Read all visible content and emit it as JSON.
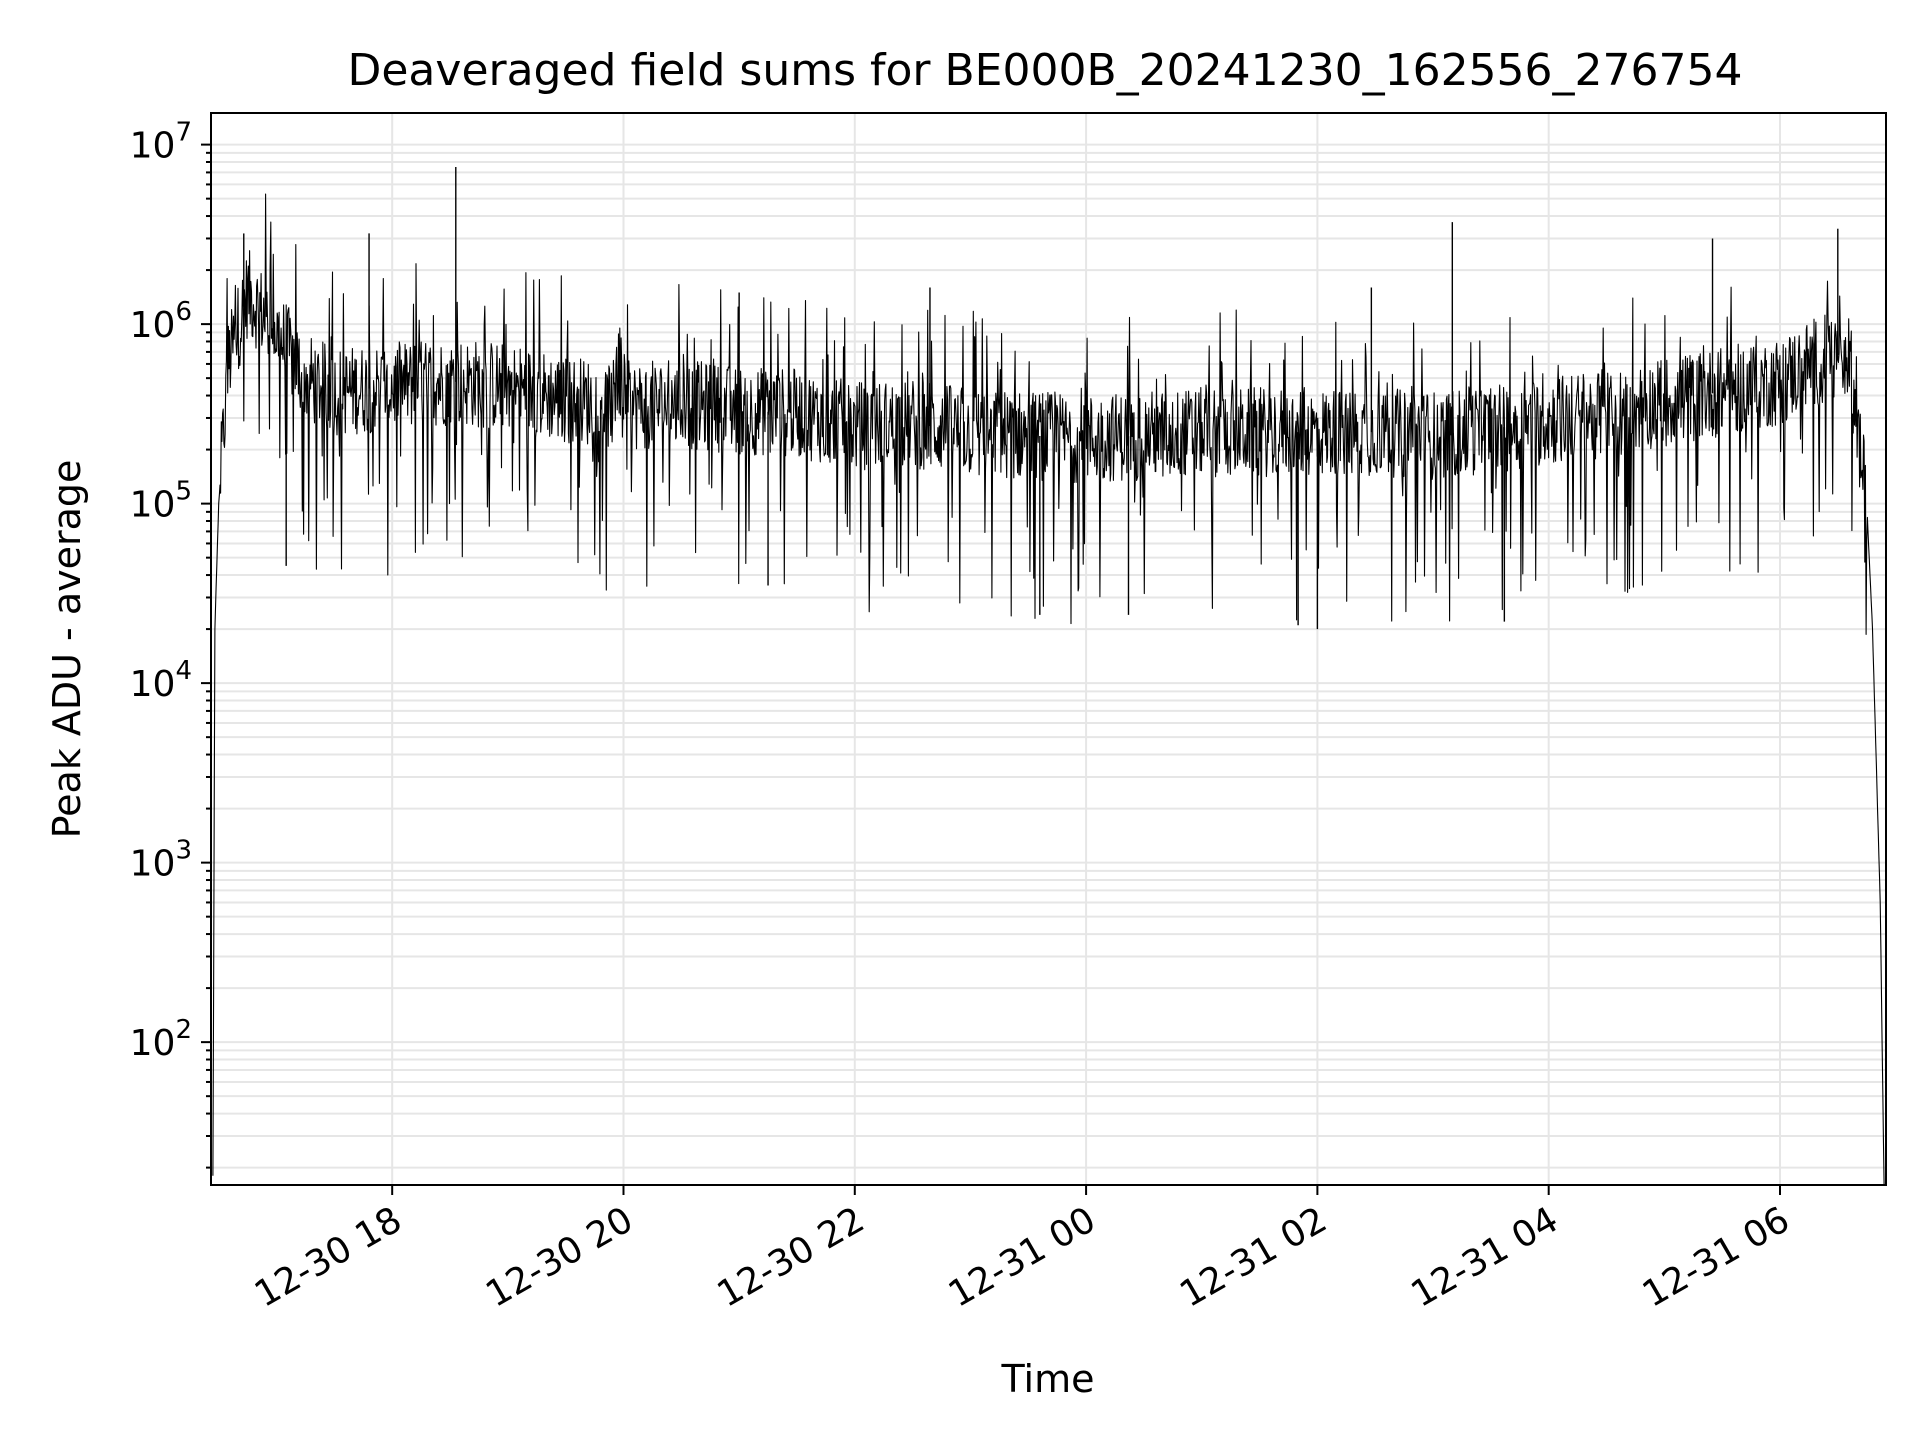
{
  "chart_data": {
    "type": "line",
    "title": "Deaveraged field sums for BE000B_20241230_162556_276754",
    "xlabel": "Time",
    "ylabel": "Peak ADU - average",
    "yscale": "log",
    "ylim": [
      16,
      15000000
    ],
    "xlim": [
      "2024-12-30 16:26",
      "2024-12-31 06:55"
    ],
    "x_ticks": [
      "12-30 18",
      "12-30 20",
      "12-30 22",
      "12-31 00",
      "12-31 02",
      "12-31 04",
      "12-31 06"
    ],
    "y_ticks": [
      {
        "base": "10",
        "exp": "2",
        "value": 100
      },
      {
        "base": "10",
        "exp": "3",
        "value": 1000
      },
      {
        "base": "10",
        "exp": "4",
        "value": 10000
      },
      {
        "base": "10",
        "exp": "5",
        "value": 100000
      },
      {
        "base": "10",
        "exp": "6",
        "value": 1000000
      },
      {
        "base": "10",
        "exp": "7",
        "value": 10000000
      }
    ],
    "grid": true,
    "line_color": "#000000",
    "series": [
      {
        "values": [
          {
            "x": "2024-12-30 16:27",
            "y": 18
          },
          {
            "x": "2024-12-30 16:28",
            "y": 20000
          },
          {
            "x": "2024-12-30 16:30",
            "y": 100000
          },
          {
            "x": "2024-12-30 16:35",
            "y": 600000
          },
          {
            "x": "2024-12-30 16:45",
            "y": 1500000
          },
          {
            "x": "2024-12-30 17:00",
            "y": 900000
          },
          {
            "x": "2024-12-30 17:15",
            "y": 500000
          },
          {
            "x": "2024-12-30 17:30",
            "y": 420000
          },
          {
            "x": "2024-12-30 18:00",
            "y": 450000
          },
          {
            "x": "2024-12-30 18:30",
            "y": 480000
          },
          {
            "x": "2024-12-30 19:00",
            "y": 450000
          },
          {
            "x": "2024-12-30 19:30",
            "y": 380000
          },
          {
            "x": "2024-12-30 20:00",
            "y": 350000
          },
          {
            "x": "2024-12-30 20:30",
            "y": 360000
          },
          {
            "x": "2024-12-30 21:00",
            "y": 330000
          },
          {
            "x": "2024-12-30 21:30",
            "y": 320000
          },
          {
            "x": "2024-12-30 22:00",
            "y": 270000
          },
          {
            "x": "2024-12-30 22:30",
            "y": 280000
          },
          {
            "x": "2024-12-30 23:00",
            "y": 250000
          },
          {
            "x": "2024-12-30 23:30",
            "y": 240000
          },
          {
            "x": "2024-12-31 00:00",
            "y": 230000
          },
          {
            "x": "2024-12-31 00:30",
            "y": 240000
          },
          {
            "x": "2024-12-31 01:00",
            "y": 250000
          },
          {
            "x": "2024-12-31 01:30",
            "y": 250000
          },
          {
            "x": "2024-12-31 02:00",
            "y": 250000
          },
          {
            "x": "2024-12-31 02:30",
            "y": 250000
          },
          {
            "x": "2024-12-31 03:00",
            "y": 240000
          },
          {
            "x": "2024-12-31 03:30",
            "y": 260000
          },
          {
            "x": "2024-12-31 04:00",
            "y": 290000
          },
          {
            "x": "2024-12-31 04:30",
            "y": 320000
          },
          {
            "x": "2024-12-31 05:00",
            "y": 370000
          },
          {
            "x": "2024-12-31 05:30",
            "y": 420000
          },
          {
            "x": "2024-12-31 06:00",
            "y": 480000
          },
          {
            "x": "2024-12-31 06:15",
            "y": 600000
          },
          {
            "x": "2024-12-31 06:35",
            "y": 700000
          },
          {
            "x": "2024-12-31 06:45",
            "y": 100000
          },
          {
            "x": "2024-12-31 06:48",
            "y": 20000
          },
          {
            "x": "2024-12-31 06:52",
            "y": 600
          },
          {
            "x": "2024-12-31 06:54",
            "y": 16
          }
        ]
      }
    ],
    "spikes": [
      {
        "x": "2024-12-30 18:33",
        "y": 7500000
      },
      {
        "x": "2024-12-30 17:48",
        "y": 3200000
      },
      {
        "x": "2024-12-30 16:43",
        "y": 3200000
      },
      {
        "x": "2024-12-31 03:10",
        "y": 3700000
      },
      {
        "x": "2024-12-31 06:30",
        "y": 3400000
      },
      {
        "x": "2024-12-31 05:25",
        "y": 3000000
      },
      {
        "x": "2024-12-30 22:39",
        "y": 1600000
      },
      {
        "x": "2024-12-30 21:00",
        "y": 1500000
      },
      {
        "x": "2024-12-31 02:28",
        "y": 1600000
      },
      {
        "x": "2024-12-30 17:05",
        "y": 45000
      },
      {
        "x": "2024-12-30 23:36",
        "y": 24000
      },
      {
        "x": "2024-12-31 00:22",
        "y": 24000
      },
      {
        "x": "2024-12-31 01:50",
        "y": 21000
      },
      {
        "x": "2024-12-31 02:00",
        "y": 20000
      },
      {
        "x": "2024-12-31 03:37",
        "y": 22000
      },
      {
        "x": "2024-12-30 21:15",
        "y": 35000
      }
    ]
  }
}
